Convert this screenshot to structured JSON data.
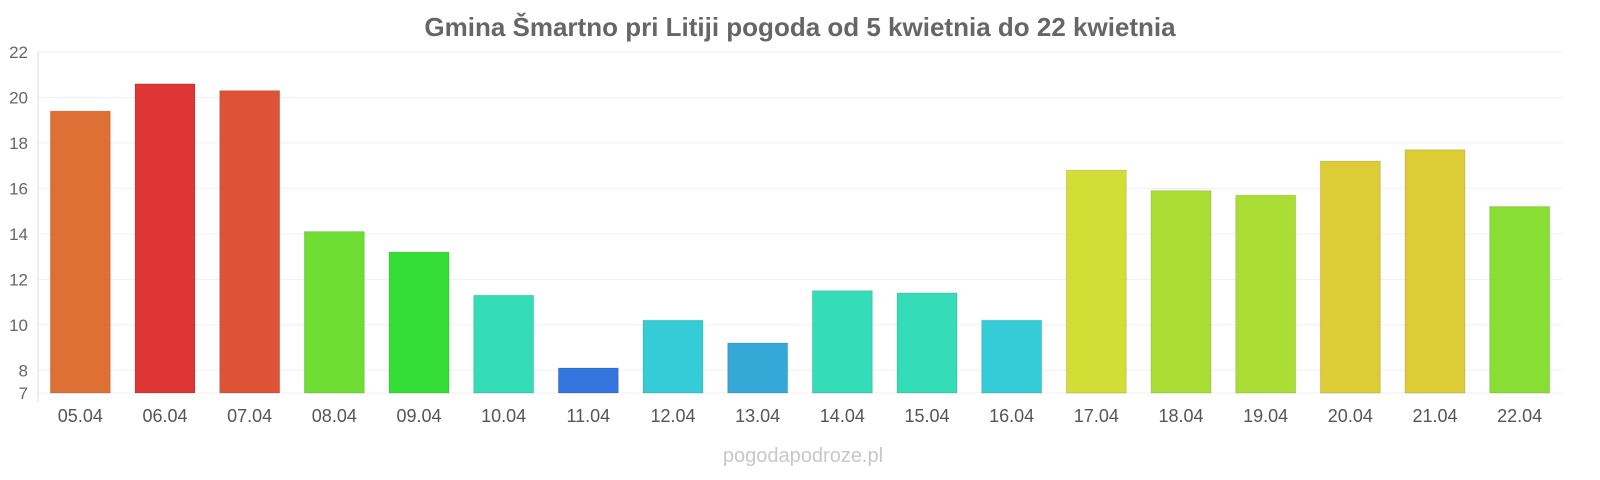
{
  "chart_data": {
    "type": "bar",
    "title": "Gmina Šmartno pri Litiji pogoda od 5 kwietnia do 22 kwietnia",
    "xlabel": "",
    "ylabel": "",
    "ylim": [
      7,
      22
    ],
    "yticks": [
      7,
      8,
      10,
      12,
      14,
      16,
      18,
      20,
      22
    ],
    "grid": true,
    "categories": [
      "05.04",
      "06.04",
      "07.04",
      "08.04",
      "09.04",
      "10.04",
      "11.04",
      "12.04",
      "13.04",
      "14.04",
      "15.04",
      "16.04",
      "17.04",
      "18.04",
      "19.04",
      "20.04",
      "21.04",
      "22.04"
    ],
    "values": [
      19.4,
      20.6,
      20.3,
      14.1,
      13.2,
      11.3,
      8.1,
      10.2,
      9.2,
      11.5,
      11.4,
      10.2,
      16.8,
      15.9,
      15.7,
      17.2,
      17.7,
      15.2
    ],
    "colors": [
      "#de7035",
      "#de3535",
      "#de5235",
      "#6ede35",
      "#35de35",
      "#35dcb8",
      "#3575de",
      "#35ccd8",
      "#35a8d8",
      "#35dcb8",
      "#35dcb8",
      "#35ccd8",
      "#d0de35",
      "#aade35",
      "#aade35",
      "#dccc35",
      "#dccc35",
      "#88de35"
    ]
  },
  "watermark": "pogodapodroze.pl"
}
